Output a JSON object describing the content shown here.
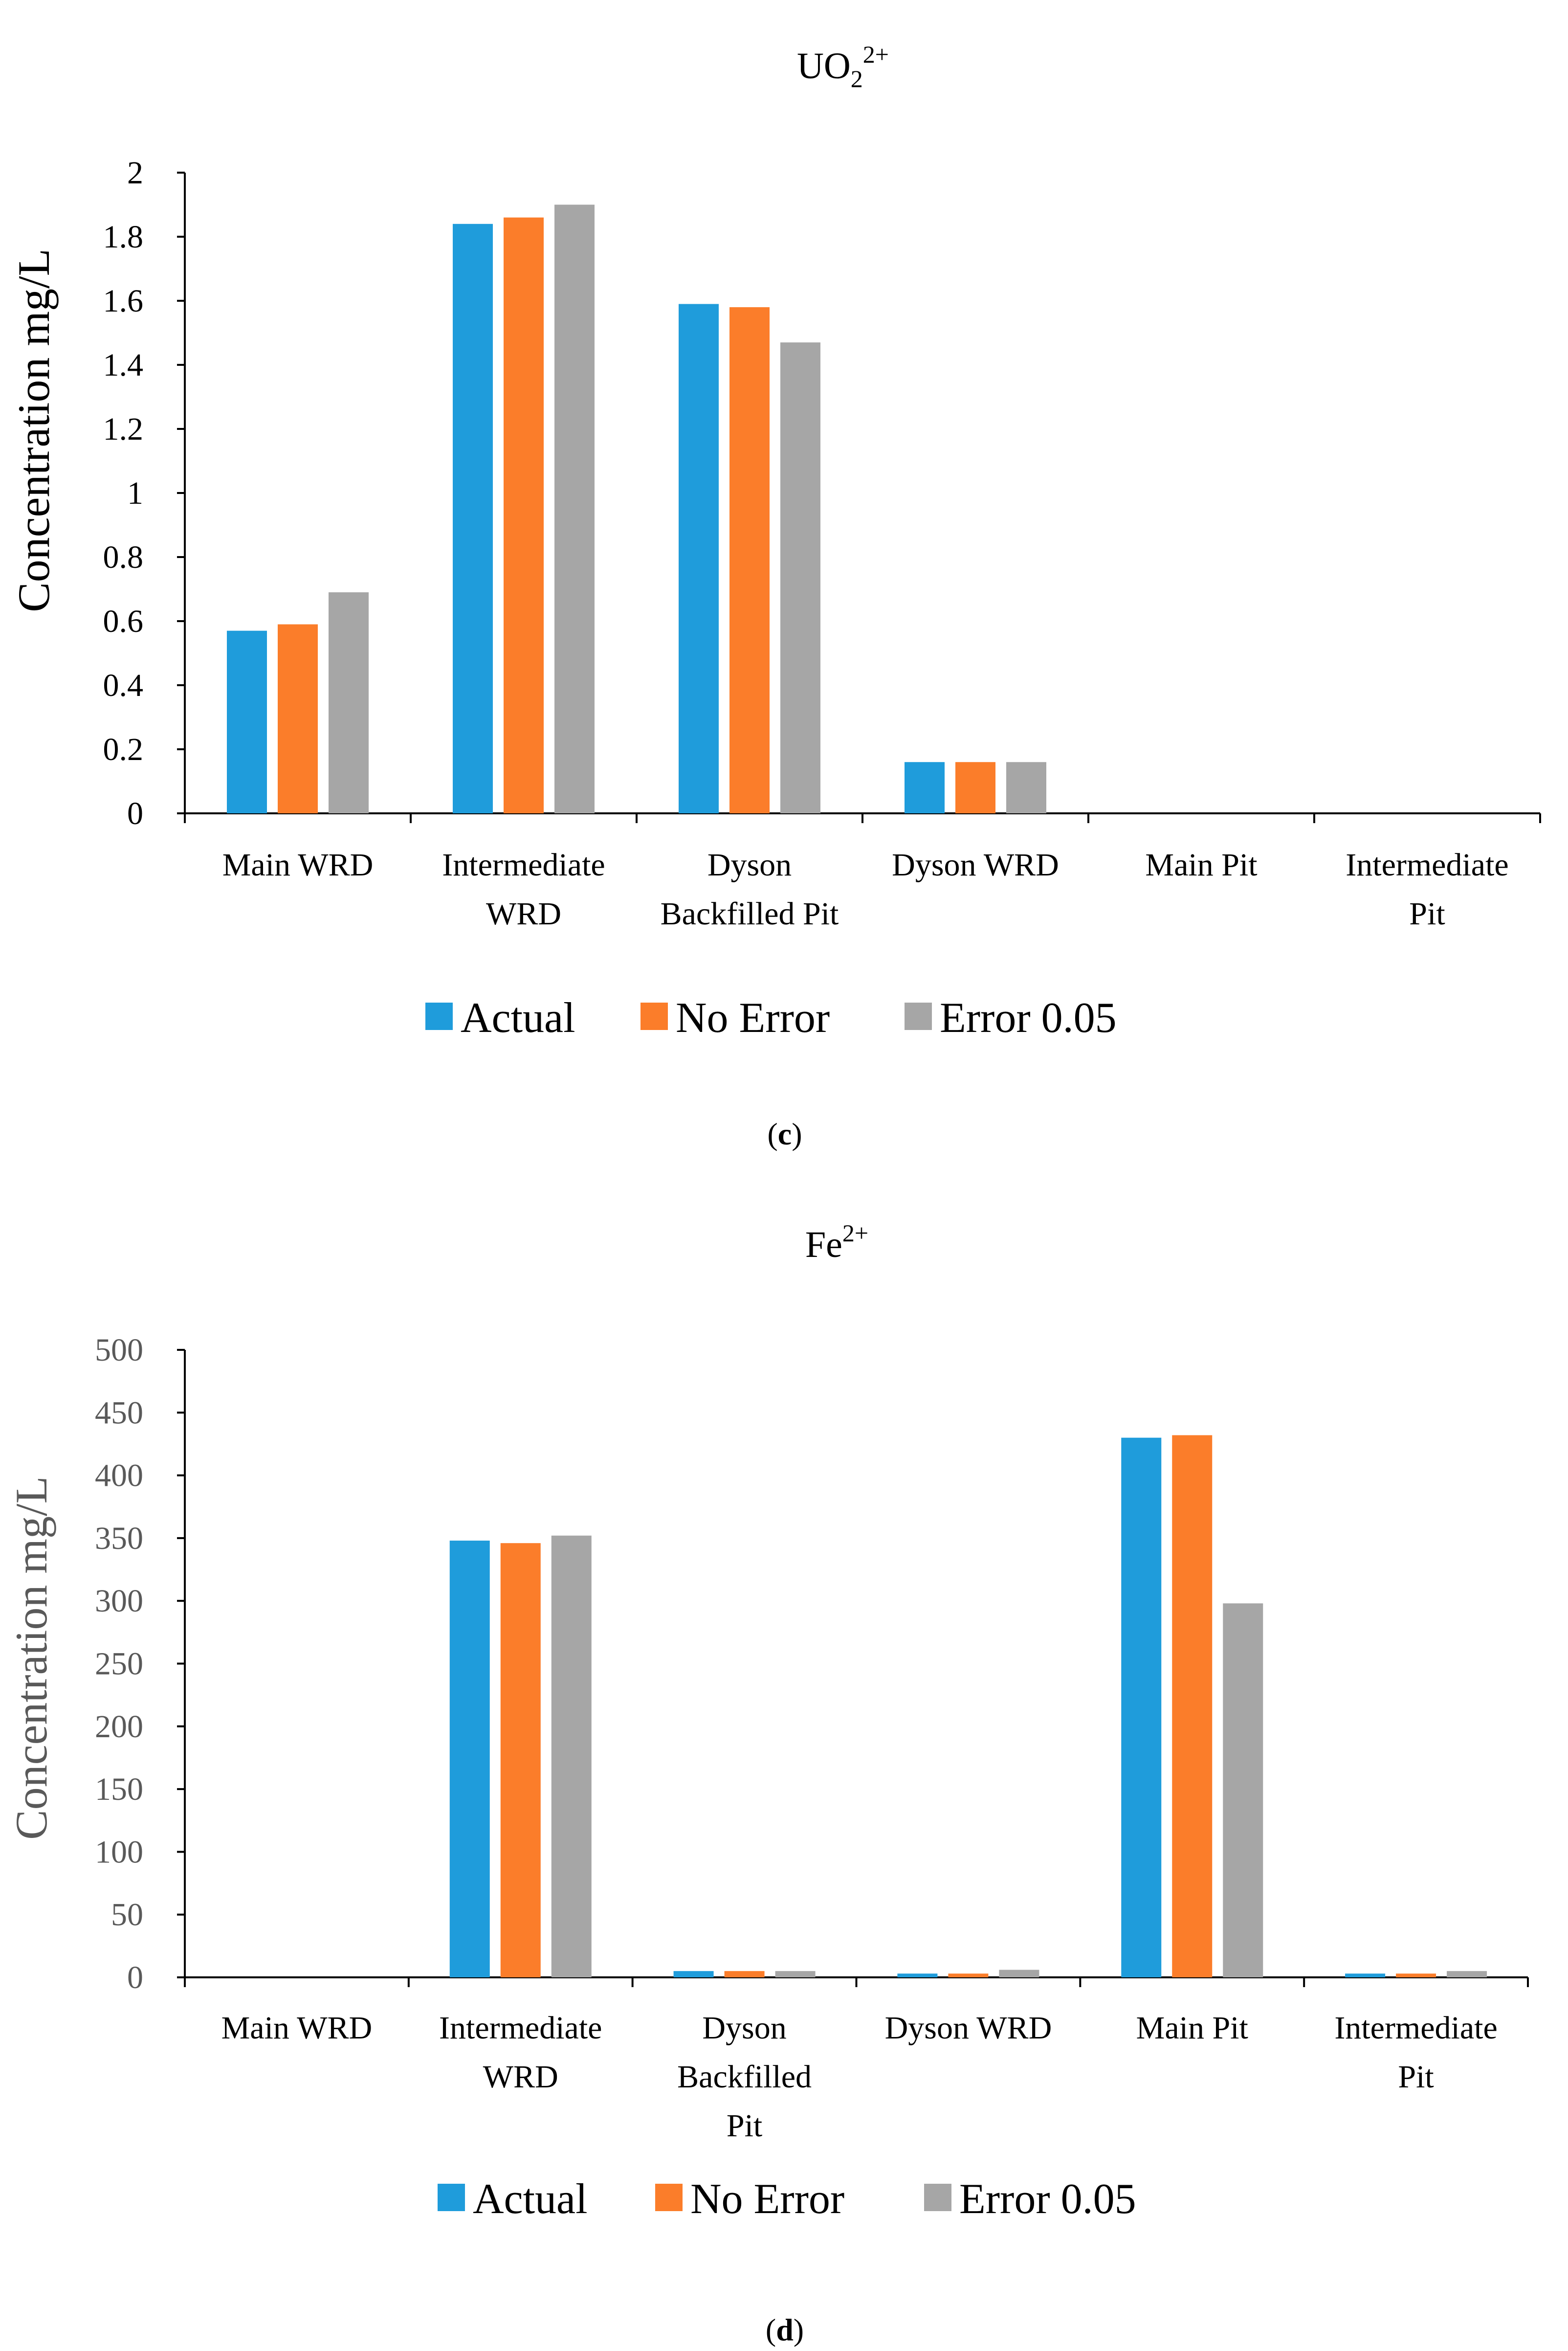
{
  "chart_data": [
    {
      "type": "bar",
      "panel_label": "c",
      "title": "UO",
      "title_sub": "2",
      "title_sup": "2+",
      "ylabel": "Concentration mg/L",
      "ylim": [
        0,
        2
      ],
      "yticks": [
        0,
        0.2,
        0.4,
        0.6,
        0.8,
        1,
        1.2,
        1.4,
        1.6,
        1.8,
        2
      ],
      "ytick_labels": [
        "0",
        "0.2",
        "0.4",
        "0.6",
        "0.8",
        "1",
        "1.2",
        "1.4",
        "1.6",
        "1.8",
        "2"
      ],
      "categories": [
        "Main WRD",
        "Intermediate WRD",
        "Dyson Backfilled Pit",
        "Dyson WRD",
        "Main Pit",
        "Intermediate Pit"
      ],
      "category_lines": [
        [
          "Main WRD"
        ],
        [
          "Intermediate",
          "WRD"
        ],
        [
          "Dyson",
          "Backfilled Pit"
        ],
        [
          "Dyson WRD"
        ],
        [
          "Main Pit"
        ],
        [
          "Intermediate",
          "Pit"
        ]
      ],
      "series": [
        {
          "name": "Actual",
          "color": "#1f9cdb",
          "values": [
            0.57,
            1.84,
            1.59,
            0.16,
            0,
            0
          ]
        },
        {
          "name": "No Error",
          "color": "#fb7d2a",
          "values": [
            0.59,
            1.86,
            1.58,
            0.16,
            0,
            0
          ]
        },
        {
          "name": "Error 0.05",
          "color": "#a6a6a6",
          "values": [
            0.69,
            1.9,
            1.47,
            0.16,
            0,
            0
          ]
        }
      ],
      "legend": "bottom",
      "grid": false
    },
    {
      "type": "bar",
      "panel_label": "d",
      "title": "Fe",
      "title_sub": "",
      "title_sup": "2+",
      "ylabel": "Concentration mg/L",
      "ylim": [
        0,
        500
      ],
      "yticks": [
        0,
        50,
        100,
        150,
        200,
        250,
        300,
        350,
        400,
        450,
        500
      ],
      "ytick_labels": [
        "0",
        "50",
        "100",
        "150",
        "200",
        "250",
        "300",
        "350",
        "400",
        "450",
        "500"
      ],
      "categories": [
        "Main WRD",
        "Intermediate WRD",
        "Dyson Backfilled Pit",
        "Dyson WRD",
        "Main Pit",
        "Intermediate Pit"
      ],
      "category_lines": [
        [
          "Main WRD"
        ],
        [
          "Intermediate",
          "WRD"
        ],
        [
          "Dyson",
          "Backfilled",
          "Pit"
        ],
        [
          "Dyson WRD"
        ],
        [
          "Main Pit"
        ],
        [
          "Intermediate",
          "Pit"
        ]
      ],
      "series": [
        {
          "name": "Actual",
          "color": "#1f9cdb",
          "values": [
            0,
            348,
            5,
            3,
            430,
            3
          ]
        },
        {
          "name": "No Error",
          "color": "#fb7d2a",
          "values": [
            0,
            346,
            5,
            3,
            432,
            3
          ]
        },
        {
          "name": "Error 0.05",
          "color": "#a6a6a6",
          "values": [
            0,
            352,
            5,
            6,
            298,
            5
          ]
        }
      ],
      "legend": "bottom",
      "grid": false
    }
  ]
}
